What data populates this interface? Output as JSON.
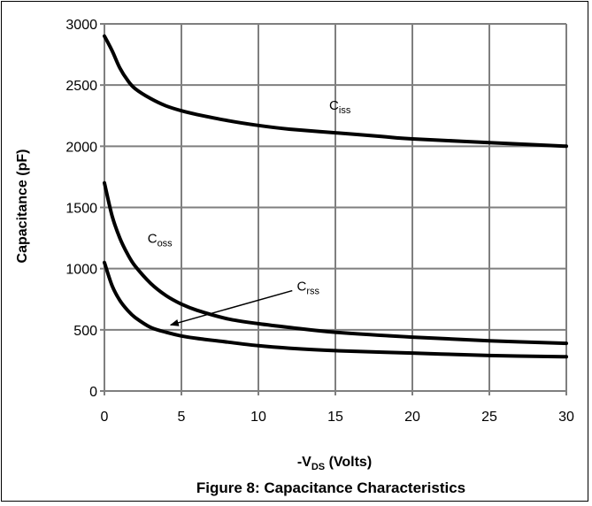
{
  "figure_caption": "Figure 8: Capacitance Characteristics",
  "chart_data": {
    "type": "line",
    "title": "",
    "xlabel": {
      "prefix": "-V",
      "sub": "DS",
      "suffix": " (Volts)"
    },
    "ylabel": "Capacitance (pF)",
    "xlim": [
      0,
      30
    ],
    "ylim": [
      0,
      3000
    ],
    "x_ticks": [
      0,
      5,
      10,
      15,
      20,
      25,
      30
    ],
    "y_ticks": [
      0,
      500,
      1000,
      1500,
      2000,
      2500,
      3000
    ],
    "grid": true,
    "legend": "none",
    "line_color": "#000000",
    "grid_color": "#7f7f7f",
    "series": [
      {
        "name": "Ciss",
        "label_main": "C",
        "label_sub": "iss",
        "x": [
          0,
          0.5,
          1,
          1.5,
          2,
          3,
          4,
          5,
          6,
          8,
          10,
          12,
          15,
          18,
          20,
          25,
          30
        ],
        "y": [
          2900,
          2780,
          2640,
          2540,
          2470,
          2390,
          2330,
          2290,
          2260,
          2210,
          2170,
          2140,
          2110,
          2080,
          2060,
          2030,
          2000
        ]
      },
      {
        "name": "Coss",
        "label_main": "C",
        "label_sub": "oss",
        "x": [
          0,
          0.5,
          1,
          1.5,
          2,
          3,
          4,
          5,
          6,
          8,
          10,
          12,
          15,
          20,
          25,
          30
        ],
        "y": [
          1700,
          1430,
          1250,
          1120,
          1020,
          880,
          780,
          710,
          660,
          590,
          550,
          520,
          480,
          440,
          410,
          390
        ]
      },
      {
        "name": "Crss",
        "label_main": "C",
        "label_sub": "rss",
        "x": [
          0,
          0.5,
          1,
          1.5,
          2,
          3,
          4,
          5,
          6,
          8,
          10,
          12,
          15,
          20,
          25,
          30
        ],
        "y": [
          1050,
          860,
          740,
          660,
          600,
          520,
          480,
          450,
          430,
          400,
          370,
          350,
          330,
          310,
          290,
          280
        ]
      }
    ],
    "annotations": [
      {
        "target": "Crss",
        "arrow_from": [
          12.2,
          820
        ],
        "arrow_to": [
          4.3,
          540
        ],
        "label_at": [
          12.5,
          820
        ]
      }
    ],
    "label_positions": {
      "Ciss": [
        14.6,
        2300
      ],
      "Coss": [
        2.8,
        1210
      ]
    }
  }
}
